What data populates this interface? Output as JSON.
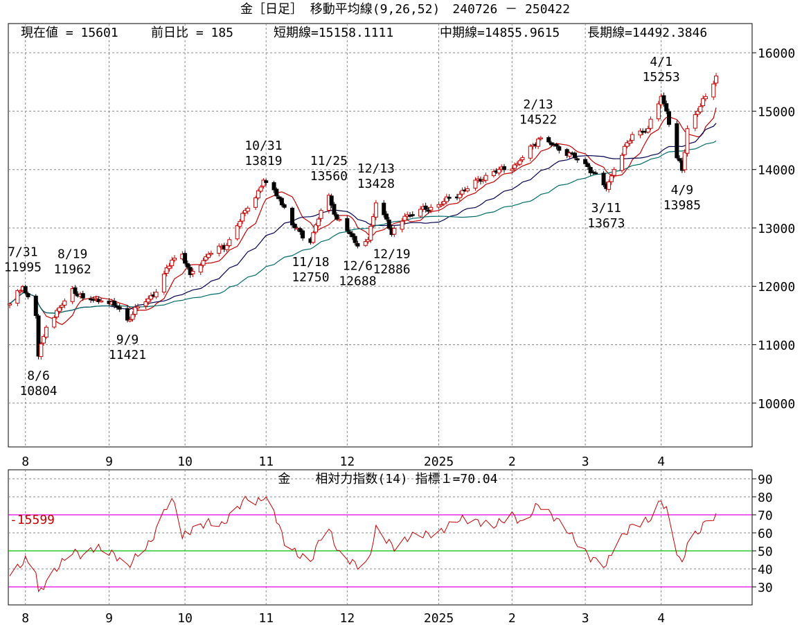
{
  "chart_data": [
    {
      "type": "candlestick",
      "title": "金［日足］ 移動平均線(9,26,52)　240726 － 250422",
      "info": {
        "current_label": "現在値 = 15601",
        "change_label": "前日比 = 185",
        "short_label": "短期線=15158.1111",
        "mid_label": "中期線=14855.9615",
        "long_label": "長期線=14492.3846"
      },
      "y_ticks": [
        "16000",
        "15000",
        "14000",
        "13000",
        "12000",
        "11000",
        "10000"
      ],
      "y_tick_values": [
        16000,
        15000,
        14000,
        13000,
        12000,
        11000,
        10000
      ],
      "ylim": [
        9250,
        16500
      ],
      "x_ticks": [
        "8",
        "9",
        "10",
        "11",
        "12",
        "2025",
        "2",
        "3",
        "4"
      ],
      "x_tick_dates": [
        "2024-08-01",
        "2024-09-02",
        "2024-10-01",
        "2024-11-01",
        "2024-12-02",
        "2025-01-06",
        "2025-02-03",
        "2025-03-03",
        "2025-04-01"
      ],
      "date_range": [
        "2024-07-26",
        "2025-04-22"
      ],
      "close_path": [
        [
          "2024-07-26",
          11700
        ],
        [
          "2024-07-31",
          11995
        ],
        [
          "2024-08-05",
          11500
        ],
        [
          "2024-08-06",
          10804
        ],
        [
          "2024-08-09",
          11300
        ],
        [
          "2024-08-16",
          11750
        ],
        [
          "2024-08-19",
          11962
        ],
        [
          "2024-08-23",
          11800
        ],
        [
          "2024-08-30",
          11750
        ],
        [
          "2024-09-05",
          11650
        ],
        [
          "2024-09-09",
          11421
        ],
        [
          "2024-09-13",
          11650
        ],
        [
          "2024-09-20",
          11900
        ],
        [
          "2024-09-26",
          12450
        ],
        [
          "2024-09-30",
          12550
        ],
        [
          "2024-10-03",
          12200
        ],
        [
          "2024-10-10",
          12550
        ],
        [
          "2024-10-17",
          12700
        ],
        [
          "2024-10-24",
          13300
        ],
        [
          "2024-10-30",
          13700
        ],
        [
          "2024-10-31",
          13819
        ],
        [
          "2024-11-06",
          13500
        ],
        [
          "2024-11-11",
          13050
        ],
        [
          "2024-11-18",
          12750
        ],
        [
          "2024-11-22",
          13300
        ],
        [
          "2024-11-25",
          13560
        ],
        [
          "2024-11-28",
          13150
        ],
        [
          "2024-12-03",
          12900
        ],
        [
          "2024-12-06",
          12688
        ],
        [
          "2024-12-10",
          12800
        ],
        [
          "2024-12-13",
          13428
        ],
        [
          "2024-12-17",
          13150
        ],
        [
          "2024-12-19",
          12886
        ],
        [
          "2024-12-24",
          13200
        ],
        [
          "2025-01-06",
          13400
        ],
        [
          "2025-01-16",
          13650
        ],
        [
          "2025-01-24",
          13900
        ],
        [
          "2025-02-05",
          14100
        ],
        [
          "2025-02-13",
          14522
        ],
        [
          "2025-02-20",
          14400
        ],
        [
          "2025-02-27",
          14200
        ],
        [
          "2025-03-04",
          14050
        ],
        [
          "2025-03-11",
          13673
        ],
        [
          "2025-03-14",
          14000
        ],
        [
          "2025-03-21",
          14600
        ],
        [
          "2025-03-27",
          14700
        ],
        [
          "2025-04-01",
          15253
        ],
        [
          "2025-04-03",
          15000
        ],
        [
          "2025-04-07",
          14200
        ],
        [
          "2025-04-09",
          13985
        ],
        [
          "2025-04-11",
          14700
        ],
        [
          "2025-04-15",
          15000
        ],
        [
          "2025-04-18",
          15250
        ],
        [
          "2025-04-22",
          15601
        ]
      ],
      "series": [
        {
          "name": "短期線",
          "period": 9,
          "color": "#c00000"
        },
        {
          "name": "中期線",
          "period": 26,
          "color": "#000050"
        },
        {
          "name": "長期線",
          "period": 52,
          "color": "#006a6a"
        }
      ],
      "annotations": [
        {
          "date": "2024-07-31",
          "text": "7/31\n11995",
          "value": 11995,
          "pos": "above"
        },
        {
          "date": "2024-08-06",
          "text": "8/6\n10804",
          "value": 10804,
          "pos": "below"
        },
        {
          "date": "2024-08-19",
          "text": "8/19\n11962",
          "value": 11962,
          "pos": "above"
        },
        {
          "date": "2024-09-09",
          "text": "9/9\n11421",
          "value": 11421,
          "pos": "below"
        },
        {
          "date": "2024-10-31",
          "text": "10/31\n13819",
          "value": 13819,
          "pos": "above"
        },
        {
          "date": "2024-11-18",
          "text": "11/18\n12750",
          "value": 12750,
          "pos": "below"
        },
        {
          "date": "2024-11-25",
          "text": "11/25\n13560",
          "value": 13560,
          "pos": "above"
        },
        {
          "date": "2024-12-06",
          "text": "12/6\n12688",
          "value": 12688,
          "pos": "below"
        },
        {
          "date": "2024-12-13",
          "text": "12/13\n13428",
          "value": 13428,
          "pos": "above"
        },
        {
          "date": "2024-12-19",
          "text": "12/19\n12886",
          "value": 12886,
          "pos": "below"
        },
        {
          "date": "2025-02-13",
          "text": "2/13\n14522",
          "value": 14522,
          "pos": "above"
        },
        {
          "date": "2025-03-11",
          "text": "3/11\n13673",
          "value": 13673,
          "pos": "below"
        },
        {
          "date": "2025-04-01",
          "text": "4/1\n15253",
          "value": 15253,
          "pos": "above"
        },
        {
          "date": "2025-04-09",
          "text": "4/9\n13985",
          "value": 13985,
          "pos": "below"
        }
      ],
      "grid": true,
      "colors": {
        "up": "#c00000",
        "down": "#000000",
        "grid": "#888888"
      }
    },
    {
      "type": "line",
      "title": "金　　相対力指数(14) 指標１=70.04",
      "y_ticks": [
        "90",
        "80",
        "70",
        "60",
        "50",
        "40",
        "30"
      ],
      "y_tick_values": [
        90,
        80,
        70,
        60,
        50,
        40,
        30
      ],
      "ylim": [
        20,
        95
      ],
      "hlines": [
        {
          "value": 70,
          "color": "#e000e0"
        },
        {
          "value": 50,
          "color": "#00c000"
        },
        {
          "value": 30,
          "color": "#e000e0"
        }
      ],
      "level_label": "-15599",
      "level_label_value": 70,
      "x_ticks": [
        "8",
        "9",
        "10",
        "11",
        "12",
        "2025",
        "2",
        "3",
        "4"
      ],
      "series": [
        {
          "name": "相対力指数(14)",
          "color": "#c00000",
          "points": [
            [
              "2024-07-26",
              36
            ],
            [
              "2024-07-30",
              42
            ],
            [
              "2024-08-01",
              45
            ],
            [
              "2024-08-05",
              40
            ],
            [
              "2024-08-06",
              26
            ],
            [
              "2024-08-09",
              33
            ],
            [
              "2024-08-14",
              42
            ],
            [
              "2024-08-19",
              50
            ],
            [
              "2024-08-23",
              47
            ],
            [
              "2024-08-28",
              52
            ],
            [
              "2024-09-04",
              48
            ],
            [
              "2024-09-09",
              41
            ],
            [
              "2024-09-13",
              48
            ],
            [
              "2024-09-18",
              55
            ],
            [
              "2024-09-24",
              75
            ],
            [
              "2024-09-27",
              78
            ],
            [
              "2024-09-30",
              58
            ],
            [
              "2024-10-04",
              62
            ],
            [
              "2024-10-10",
              66
            ],
            [
              "2024-10-15",
              64
            ],
            [
              "2024-10-21",
              74
            ],
            [
              "2024-10-25",
              80
            ],
            [
              "2024-10-28",
              76
            ],
            [
              "2024-10-31",
              80
            ],
            [
              "2024-11-04",
              72
            ],
            [
              "2024-11-08",
              55
            ],
            [
              "2024-11-13",
              48
            ],
            [
              "2024-11-18",
              44
            ],
            [
              "2024-11-22",
              58
            ],
            [
              "2024-11-25",
              62
            ],
            [
              "2024-11-29",
              48
            ],
            [
              "2024-12-06",
              42
            ],
            [
              "2024-12-10",
              44
            ],
            [
              "2024-12-13",
              62
            ],
            [
              "2024-12-17",
              56
            ],
            [
              "2024-12-20",
              52
            ],
            [
              "2024-12-26",
              58
            ],
            [
              "2025-01-06",
              60
            ],
            [
              "2025-01-14",
              68
            ],
            [
              "2025-01-21",
              66
            ],
            [
              "2025-01-27",
              64
            ],
            [
              "2025-02-03",
              70
            ],
            [
              "2025-02-07",
              65
            ],
            [
              "2025-02-13",
              76
            ],
            [
              "2025-02-18",
              70
            ],
            [
              "2025-02-24",
              62
            ],
            [
              "2025-02-28",
              54
            ],
            [
              "2025-03-05",
              46
            ],
            [
              "2025-03-11",
              42
            ],
            [
              "2025-03-14",
              52
            ],
            [
              "2025-03-20",
              63
            ],
            [
              "2025-03-25",
              66
            ],
            [
              "2025-03-28",
              68
            ],
            [
              "2025-04-01",
              78
            ],
            [
              "2025-04-03",
              73
            ],
            [
              "2025-04-07",
              50
            ],
            [
              "2025-04-09",
              42
            ],
            [
              "2025-04-11",
              55
            ],
            [
              "2025-04-15",
              60
            ],
            [
              "2025-04-18",
              66
            ],
            [
              "2025-04-22",
              70
            ]
          ]
        }
      ]
    }
  ]
}
